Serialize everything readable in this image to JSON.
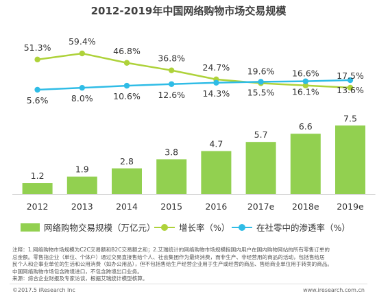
{
  "title": "2012-2019年中国网络购物市场交易规模",
  "chart_data": {
    "type": "bar",
    "categories": [
      "2012",
      "2013",
      "2014",
      "2015",
      "2016",
      "2017e",
      "2018e",
      "2019e"
    ],
    "series": [
      {
        "name": "网络购物交易规模（万亿元）",
        "type": "bar",
        "color": "#92d050",
        "values": [
          1.2,
          1.9,
          2.8,
          3.8,
          4.7,
          5.7,
          6.6,
          7.5
        ],
        "labels": [
          "1.2",
          "1.9",
          "2.8",
          "3.8",
          "4.7",
          "5.7",
          "6.6",
          "7.5"
        ]
      },
      {
        "name": "增长率（%）",
        "type": "line",
        "color": "#aed23a",
        "values": [
          51.3,
          59.4,
          46.8,
          36.8,
          24.7,
          19.6,
          16.6,
          13.6
        ],
        "labels": [
          "51.3%",
          "59.4%",
          "46.8%",
          "36.8%",
          "24.7%",
          "19.6%",
          "16.6%",
          "13.6%"
        ]
      },
      {
        "name": "在社零中的渗透率（%）",
        "type": "line",
        "color": "#2fbce6",
        "values": [
          5.6,
          8.0,
          10.6,
          12.6,
          14.3,
          15.5,
          16.1,
          17.5
        ],
        "labels": [
          "5.6%",
          "8.0%",
          "10.6%",
          "12.6%",
          "14.3%",
          "15.5%",
          "16.1%",
          "17.5%"
        ]
      }
    ]
  },
  "legend": {
    "bar": "网络购物交易规模（万亿元）",
    "growth": "增长率（%）",
    "penetration": "在社零中的渗透率（%）"
  },
  "notes": [
    "注释：1.网络购物市场规模为C2C交易额和B2C交易额之和；2.艾瑞统计的网络购物市场规模指国内用户在国内购物网站的所有零售订单的",
    "总金额。零售指企业（单位、个体户）通过交易直接售给个人、社会集团作为最终消费，而非生产、非经营用的商品的活动，包括售给居",
    "民个人和企事业单位的生活和公用消费（如办公用品），但不包括售给生产经营企业用于生产或经营的商品、售给商业单位用于转卖的商品。",
    "中国网络购物市场包含跨境进口，不包含跨境出口业务。",
    "来源：综合企业财报及专家访谈，根据艾瑞统计模型核算。"
  ],
  "footer": {
    "left": "©2017.5 iResearch Inc",
    "right": "www.iresearch.com.cn"
  }
}
